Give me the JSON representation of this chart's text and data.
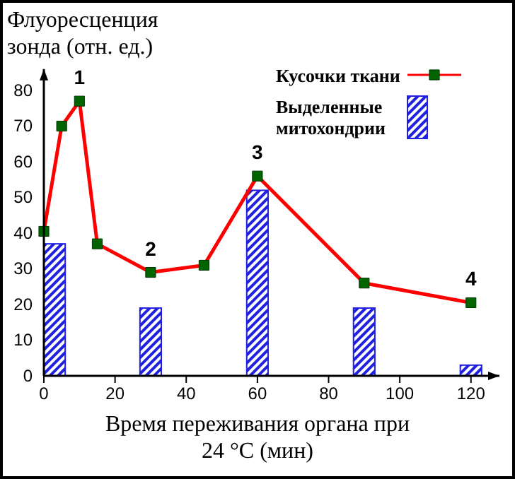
{
  "chart_data": {
    "type": "line",
    "ylabel": "Флуоресценция зонда (отн. ед.)",
    "xlabel": "Время переживания органа при 24 °C (мин)",
    "xlim": [
      0,
      128
    ],
    "ylim": [
      0,
      86
    ],
    "xticks": [
      0,
      20,
      40,
      60,
      80,
      100,
      120
    ],
    "yticks": [
      0,
      10,
      20,
      30,
      40,
      50,
      60,
      70,
      80
    ],
    "legend": "top right",
    "grid": false,
    "series": [
      {
        "name": "Кусочки ткани",
        "color": "#ff0000",
        "marker": "square",
        "x": [
          0,
          5,
          10,
          15,
          30,
          45,
          60,
          90,
          120
        ],
        "values": [
          40.5,
          70,
          77,
          37,
          29,
          31,
          56,
          26,
          20.5
        ]
      },
      {
        "name": "Выделенные митохондрии",
        "type": "bar",
        "color": "#2020e0",
        "x": [
          3,
          30,
          60,
          90,
          120
        ],
        "values": [
          37,
          19,
          52,
          19,
          3
        ]
      }
    ],
    "annotations": [
      {
        "text": "1",
        "x": 10,
        "y": 77
      },
      {
        "text": "2",
        "x": 30,
        "y": 29
      },
      {
        "text": "3",
        "x": 60,
        "y": 56
      },
      {
        "text": "4",
        "x": 120,
        "y": 20.5
      }
    ]
  }
}
